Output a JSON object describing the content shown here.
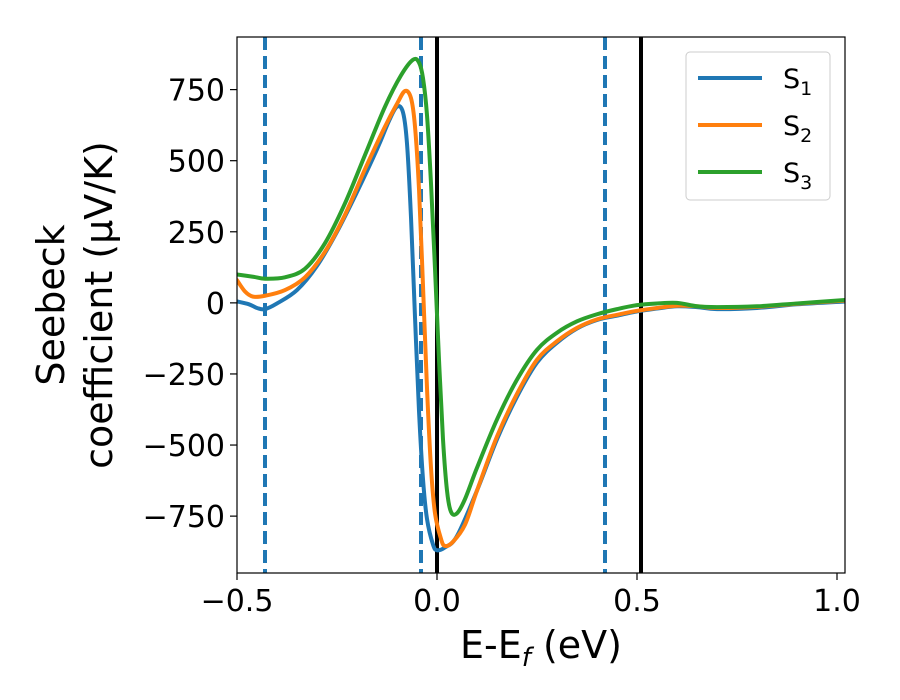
{
  "chart_data": {
    "type": "line",
    "xlabel": {
      "main": "E-E",
      "sub": "f",
      "unit": " (eV)"
    },
    "ylabel": {
      "line1": "Seebeck",
      "line2": "coefficient  (μV/K)"
    },
    "xlim": [
      -0.5,
      1.02
    ],
    "ylim": [
      -950,
      935
    ],
    "xticks": [
      -0.5,
      0.0,
      0.5,
      1.0
    ],
    "xtick_labels": [
      "−0.5",
      "0.0",
      "0.5",
      "1.0"
    ],
    "yticks": [
      750,
      500,
      250,
      0,
      -250,
      -500,
      -750
    ],
    "ytick_labels": [
      "750",
      "500",
      "250",
      "0",
      "−250",
      "−500",
      "−750"
    ],
    "grid": false,
    "legend_position": "top-right",
    "vlines": [
      {
        "x": -0.43,
        "style": "dashed",
        "color": "#1f77b4"
      },
      {
        "x": -0.04,
        "style": "dashed",
        "color": "#1f77b4"
      },
      {
        "x": 0.42,
        "style": "dashed",
        "color": "#1f77b4"
      },
      {
        "x": 0.0,
        "style": "solid",
        "color": "#000000"
      },
      {
        "x": 0.51,
        "style": "solid",
        "color": "#000000"
      }
    ],
    "series": [
      {
        "name": "S",
        "sub": "1",
        "color": "#1f77b4",
        "points": [
          [
            -0.5,
            5
          ],
          [
            -0.47,
            -5
          ],
          [
            -0.45,
            -18
          ],
          [
            -0.43,
            -22
          ],
          [
            -0.4,
            -2
          ],
          [
            -0.35,
            45
          ],
          [
            -0.3,
            130
          ],
          [
            -0.25,
            250
          ],
          [
            -0.2,
            390
          ],
          [
            -0.15,
            540
          ],
          [
            -0.12,
            640
          ],
          [
            -0.1,
            690
          ],
          [
            -0.085,
            670
          ],
          [
            -0.075,
            560
          ],
          [
            -0.065,
            300
          ],
          [
            -0.055,
            -50
          ],
          [
            -0.045,
            -380
          ],
          [
            -0.035,
            -620
          ],
          [
            -0.025,
            -760
          ],
          [
            -0.01,
            -850
          ],
          [
            0.0,
            -870
          ],
          [
            0.02,
            -860
          ],
          [
            0.05,
            -820
          ],
          [
            0.1,
            -660
          ],
          [
            0.15,
            -480
          ],
          [
            0.2,
            -330
          ],
          [
            0.25,
            -210
          ],
          [
            0.3,
            -140
          ],
          [
            0.35,
            -90
          ],
          [
            0.4,
            -60
          ],
          [
            0.45,
            -45
          ],
          [
            0.5,
            -30
          ],
          [
            0.55,
            -20
          ],
          [
            0.6,
            -12
          ],
          [
            0.65,
            -15
          ],
          [
            0.7,
            -22
          ],
          [
            0.8,
            -18
          ],
          [
            0.9,
            -5
          ],
          [
            1.02,
            5
          ]
        ]
      },
      {
        "name": "S",
        "sub": "2",
        "color": "#ff7f0e",
        "points": [
          [
            -0.5,
            80
          ],
          [
            -0.48,
            40
          ],
          [
            -0.46,
            22
          ],
          [
            -0.43,
            25
          ],
          [
            -0.38,
            45
          ],
          [
            -0.33,
            90
          ],
          [
            -0.28,
            180
          ],
          [
            -0.23,
            310
          ],
          [
            -0.18,
            470
          ],
          [
            -0.13,
            620
          ],
          [
            -0.1,
            700
          ],
          [
            -0.08,
            745
          ],
          [
            -0.065,
            720
          ],
          [
            -0.055,
            620
          ],
          [
            -0.045,
            400
          ],
          [
            -0.035,
            60
          ],
          [
            -0.025,
            -300
          ],
          [
            -0.015,
            -580
          ],
          [
            -0.005,
            -740
          ],
          [
            0.01,
            -830
          ],
          [
            0.02,
            -855
          ],
          [
            0.04,
            -840
          ],
          [
            0.07,
            -780
          ],
          [
            0.1,
            -660
          ],
          [
            0.15,
            -470
          ],
          [
            0.2,
            -320
          ],
          [
            0.25,
            -200
          ],
          [
            0.3,
            -135
          ],
          [
            0.35,
            -88
          ],
          [
            0.4,
            -58
          ],
          [
            0.45,
            -42
          ],
          [
            0.5,
            -28
          ],
          [
            0.55,
            -18
          ],
          [
            0.6,
            -10
          ],
          [
            0.65,
            -12
          ],
          [
            0.7,
            -18
          ],
          [
            0.8,
            -14
          ],
          [
            0.9,
            -3
          ],
          [
            1.02,
            8
          ]
        ]
      },
      {
        "name": "S",
        "sub": "3",
        "color": "#2ca02c",
        "points": [
          [
            -0.5,
            100
          ],
          [
            -0.46,
            92
          ],
          [
            -0.43,
            85
          ],
          [
            -0.38,
            90
          ],
          [
            -0.33,
            120
          ],
          [
            -0.28,
            210
          ],
          [
            -0.23,
            350
          ],
          [
            -0.18,
            520
          ],
          [
            -0.13,
            690
          ],
          [
            -0.09,
            800
          ],
          [
            -0.06,
            855
          ],
          [
            -0.045,
            845
          ],
          [
            -0.035,
            790
          ],
          [
            -0.025,
            660
          ],
          [
            -0.015,
            420
          ],
          [
            -0.005,
            120
          ],
          [
            0.005,
            -200
          ],
          [
            0.015,
            -480
          ],
          [
            0.025,
            -660
          ],
          [
            0.035,
            -735
          ],
          [
            0.05,
            -740
          ],
          [
            0.07,
            -690
          ],
          [
            0.1,
            -580
          ],
          [
            0.15,
            -410
          ],
          [
            0.2,
            -270
          ],
          [
            0.25,
            -165
          ],
          [
            0.3,
            -105
          ],
          [
            0.35,
            -65
          ],
          [
            0.4,
            -40
          ],
          [
            0.45,
            -22
          ],
          [
            0.5,
            -8
          ],
          [
            0.55,
            -2
          ],
          [
            0.6,
            0
          ],
          [
            0.65,
            -12
          ],
          [
            0.7,
            -15
          ],
          [
            0.8,
            -12
          ],
          [
            0.9,
            -2
          ],
          [
            1.02,
            10
          ]
        ]
      }
    ]
  }
}
